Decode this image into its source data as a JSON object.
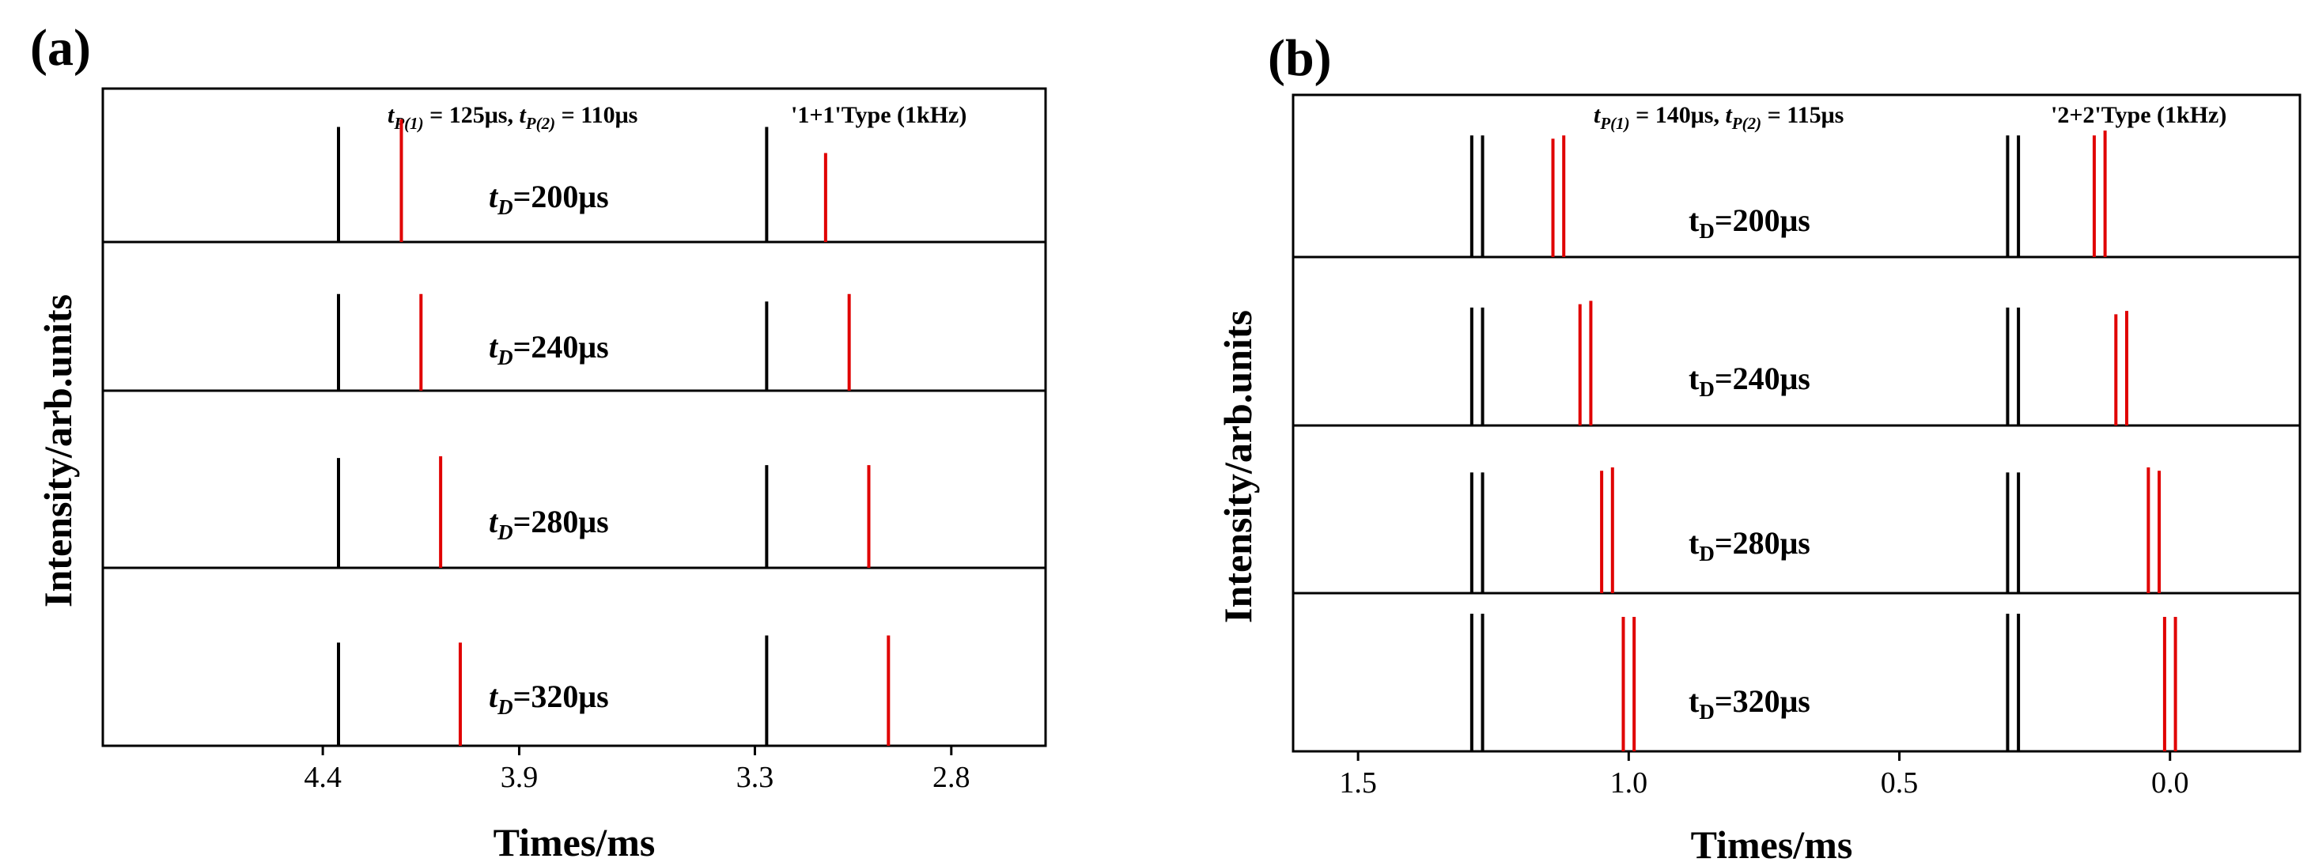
{
  "chart_data": [
    {
      "type": "pulse-timing",
      "panel_label": "(a)",
      "xlabel": "Times/ms",
      "ylabel": "Intensity/arb.units",
      "x_reversed": true,
      "xlim": [
        4.96,
        2.56
      ],
      "xticks": [
        4.4,
        3.9,
        3.3,
        2.8
      ],
      "xtick_labels": [
        "4.4",
        "3.9",
        "3.3",
        "2.8"
      ],
      "annotation_left": "t_{P(1)} = 125μs, t_{P(2)} = 110μs",
      "annotation_right": "'1+1'Type (1kHz)",
      "td_style": "italic",
      "colors": {
        "reference": "#000000",
        "delayed": "#e00000"
      },
      "rows": [
        {
          "td_label": "200μs",
          "black": [
            {
              "t": 4.36,
              "h": 0.75
            },
            {
              "t": 3.27,
              "h": 0.75
            }
          ],
          "red": [
            {
              "t": 4.2,
              "h": 0.8
            },
            {
              "t": 3.12,
              "h": 0.58
            }
          ]
        },
        {
          "td_label": "240μs",
          "black": [
            {
              "t": 4.36,
              "h": 0.65
            },
            {
              "t": 3.27,
              "h": 0.6
            }
          ],
          "red": [
            {
              "t": 4.15,
              "h": 0.65
            },
            {
              "t": 3.06,
              "h": 0.65
            }
          ]
        },
        {
          "td_label": "280μs",
          "black": [
            {
              "t": 4.36,
              "h": 0.62
            },
            {
              "t": 3.27,
              "h": 0.58
            }
          ],
          "red": [
            {
              "t": 4.1,
              "h": 0.63
            },
            {
              "t": 3.01,
              "h": 0.58
            }
          ]
        },
        {
          "td_label": "320μs",
          "black": [
            {
              "t": 4.36,
              "h": 0.58
            },
            {
              "t": 3.27,
              "h": 0.62
            }
          ],
          "red": [
            {
              "t": 4.05,
              "h": 0.58
            },
            {
              "t": 2.96,
              "h": 0.62
            }
          ]
        }
      ]
    },
    {
      "type": "pulse-timing",
      "panel_label": "(b)",
      "xlabel": "Times/ms",
      "ylabel": "Intensity/arb.units",
      "x_reversed": true,
      "xlim": [
        1.62,
        -0.24
      ],
      "xticks": [
        1.5,
        1.0,
        0.5,
        0.0
      ],
      "xtick_labels": [
        "1.5",
        "1.0",
        "0.5",
        "0.0"
      ],
      "annotation_left": "t_{P(1)} = 140μs, t_{P(2)} = 115μs",
      "annotation_right": "'2+2'Type (1kHz)",
      "td_style": "upright",
      "colors": {
        "reference": "#000000",
        "delayed": "#e00000"
      },
      "rows": [
        {
          "td_label": "200μs",
          "black": [
            {
              "t": 1.29,
              "h": 0.75
            },
            {
              "t": 1.27,
              "h": 0.75
            },
            {
              "t": 0.3,
              "h": 0.75
            },
            {
              "t": 0.28,
              "h": 0.75
            }
          ],
          "red": [
            {
              "t": 1.14,
              "h": 0.73
            },
            {
              "t": 1.12,
              "h": 0.75
            },
            {
              "t": 0.14,
              "h": 0.75
            },
            {
              "t": 0.12,
              "h": 0.78
            }
          ]
        },
        {
          "td_label": "240μs",
          "black": [
            {
              "t": 1.29,
              "h": 0.7
            },
            {
              "t": 1.27,
              "h": 0.7
            },
            {
              "t": 0.3,
              "h": 0.7
            },
            {
              "t": 0.28,
              "h": 0.7
            }
          ],
          "red": [
            {
              "t": 1.09,
              "h": 0.72
            },
            {
              "t": 1.07,
              "h": 0.74
            },
            {
              "t": 0.1,
              "h": 0.66
            },
            {
              "t": 0.08,
              "h": 0.68
            }
          ]
        },
        {
          "td_label": "280μs",
          "black": [
            {
              "t": 1.29,
              "h": 0.72
            },
            {
              "t": 1.27,
              "h": 0.72
            },
            {
              "t": 0.3,
              "h": 0.72
            },
            {
              "t": 0.28,
              "h": 0.72
            }
          ],
          "red": [
            {
              "t": 1.05,
              "h": 0.73
            },
            {
              "t": 1.03,
              "h": 0.75
            },
            {
              "t": 0.04,
              "h": 0.75
            },
            {
              "t": 0.02,
              "h": 0.73
            }
          ]
        },
        {
          "td_label": "320μs",
          "black": [
            {
              "t": 1.29,
              "h": 0.87
            },
            {
              "t": 1.27,
              "h": 0.87
            },
            {
              "t": 0.3,
              "h": 0.87
            },
            {
              "t": 0.28,
              "h": 0.87
            }
          ],
          "red": [
            {
              "t": 1.01,
              "h": 0.85
            },
            {
              "t": 0.99,
              "h": 0.85
            },
            {
              "t": 0.01,
              "h": 0.85
            },
            {
              "t": -0.01,
              "h": 0.85
            }
          ]
        }
      ]
    }
  ]
}
